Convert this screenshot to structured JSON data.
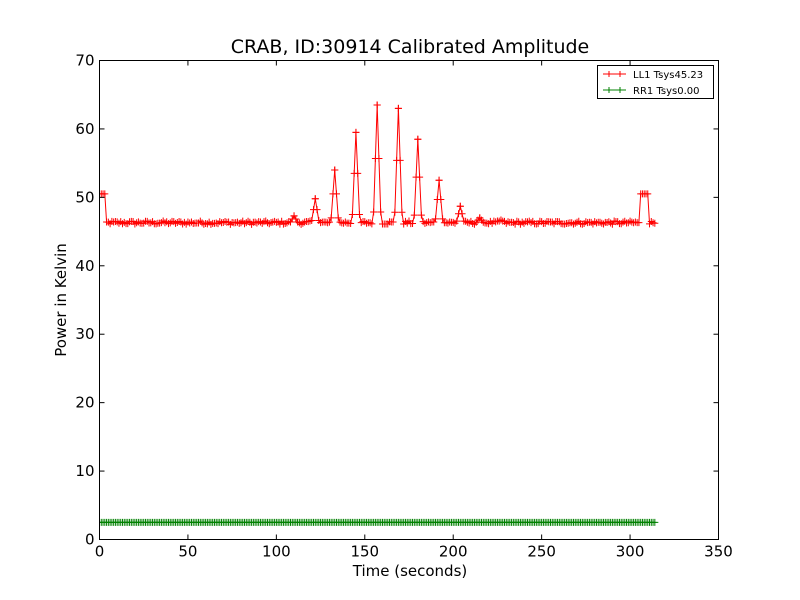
{
  "chart_data": {
    "type": "line",
    "title": "CRAB, ID:30914 Calibrated Amplitude",
    "xlabel": "Time (seconds)",
    "ylabel": "Power in Kelvin",
    "xlim": [
      0,
      350
    ],
    "ylim": [
      0,
      70
    ],
    "xticks": [
      "0",
      "50",
      "100",
      "150",
      "200",
      "250",
      "300",
      "350"
    ],
    "yticks": [
      "0",
      "10",
      "20",
      "30",
      "40",
      "50",
      "60",
      "70"
    ],
    "legend_position": "top-right",
    "grid": false,
    "series": [
      {
        "name": "LL1 Tsys45.23",
        "color": "#ff0000",
        "marker": "plus",
        "baseline": 46.3,
        "noise": 0.25,
        "start_level": 50.5,
        "start_range": [
          0,
          3
        ],
        "end_level": 50.5,
        "end_range": [
          306,
          310
        ],
        "x_range": [
          0,
          314
        ],
        "step": 1,
        "peaks": [
          {
            "x": 110,
            "y": 47.3
          },
          {
            "x": 122,
            "y": 49.8
          },
          {
            "x": 133,
            "y": 54.0
          },
          {
            "x": 145,
            "y": 59.5
          },
          {
            "x": 157,
            "y": 63.5
          },
          {
            "x": 169,
            "y": 63.0
          },
          {
            "x": 180,
            "y": 58.5
          },
          {
            "x": 192,
            "y": 52.5
          },
          {
            "x": 204,
            "y": 48.7
          },
          {
            "x": 215,
            "y": 47.0
          },
          {
            "x": 227,
            "y": 46.7
          }
        ],
        "peak_halfwidth": 2.2
      },
      {
        "name": "RR1 Tsys0.00",
        "color": "#008000",
        "marker": "plus",
        "baseline": 2.5,
        "noise": 0,
        "x_range": [
          0,
          314
        ],
        "step": 1,
        "peaks": []
      }
    ]
  }
}
